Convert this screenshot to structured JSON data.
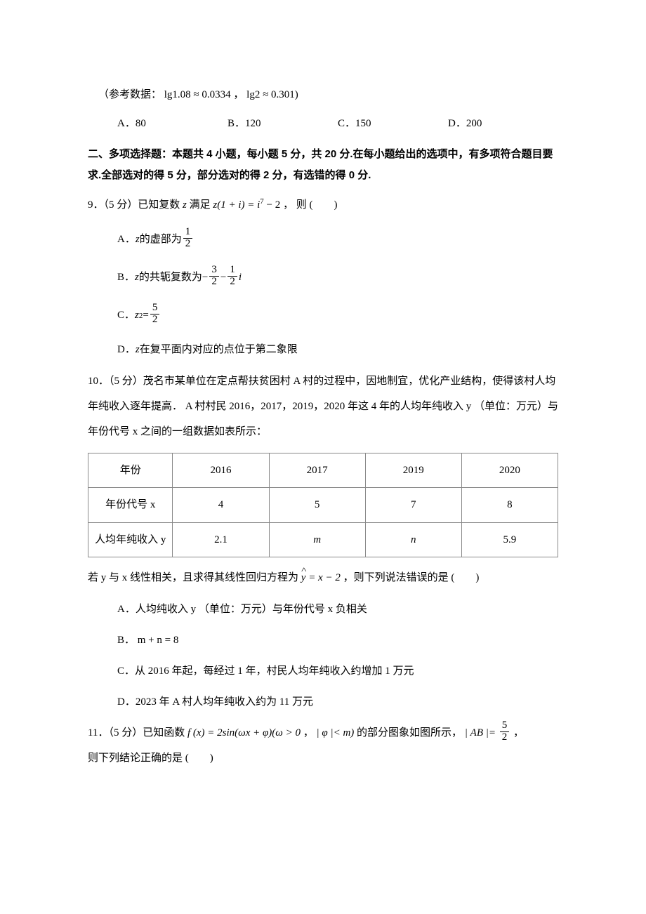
{
  "ref_data": "（参考数据： lg1.08 ≈ 0.0334 ， lg2 ≈ 0.301)",
  "q8_options": {
    "A": "A．80",
    "B": "B．120",
    "C": "C．150",
    "D": "D．200"
  },
  "section2": "二、多项选择题：本题共 4 小题，每小题 5 分，共 20 分.在每小题给出的选项中，有多项符合题目要求.全部选对的得 5 分，部分选对的得 2 分，有选错的得 0 分.",
  "q9": {
    "stem_pre": "9．（5 分）已知复数 ",
    "stem_mid": " 满足 ",
    "stem_post": " ， 则 (　　)",
    "A_pre": "A． ",
    "A_post": " 的虚部为",
    "B_pre": "B． ",
    "B_post": " 的共轭复数为",
    "C_pre": "C． ",
    "D_pre": "D． ",
    "D_post": " 在复平面内对应的点位于第二象限",
    "z": "z",
    "eq_lhs": "z(1 + i) = i",
    "eq_exp": "7",
    "eq_rhs": " − 2",
    "frac_1_2_n": "1",
    "frac_1_2_d": "2",
    "frac_3_2_n": "3",
    "frac_3_2_d": "2",
    "z2_lhs": "z",
    "z2_exp": "2",
    "z2_eq": " = ",
    "frac_5_2_n": "5",
    "frac_5_2_d": "2",
    "minus": "−",
    "i": "i"
  },
  "q10": {
    "para1": "10．（5 分）茂名市某单位在定点帮扶贫困村 A 村的过程中，因地制宜，优化产业结构，使得该村人均年纯收入逐年提高． A 村村民 2016，2017，2019，2020 年这 4 年的人均年纯收入 y （单位：万元）与年份代号 x 之间的一组数据如表所示：",
    "row0": [
      "年份",
      "2016",
      "2017",
      "2019",
      "2020"
    ],
    "row1": [
      "年份代号 x",
      "4",
      "5",
      "7",
      "8"
    ],
    "row2": [
      "人均年纯收入 y",
      "2.1",
      "m",
      "n",
      "5.9"
    ],
    "para2_pre": "若 y 与 x 线性相关，且求得其线性回归方程为",
    "reg_y": "y",
    "reg_eq": " = x − 2",
    "para2_post": " ，则下列说法错误的是 (　　)",
    "A": "A．人均纯收入 y （单位：万元）与年份代号 x 负相关",
    "B": "B． m + n = 8",
    "C": "C．从 2016 年起，每经过 1 年，村民人均年纯收入约增加 1 万元",
    "D": "D．2023 年 A 村人均年纯收入约为 11 万元"
  },
  "q11": {
    "pre": "11．（5 分）已知函数 ",
    "fx": "f (x) = 2sin(ωx + φ)(ω > 0",
    "mid": " ， ",
    "phi": "| φ |< m)",
    "mid2": " 的部分图象如图所示， ",
    "ab": "| AB |= ",
    "frac_n": "5",
    "frac_d": "2",
    "post": " ，",
    "line2": "则下列结论正确的是 (　　)"
  }
}
